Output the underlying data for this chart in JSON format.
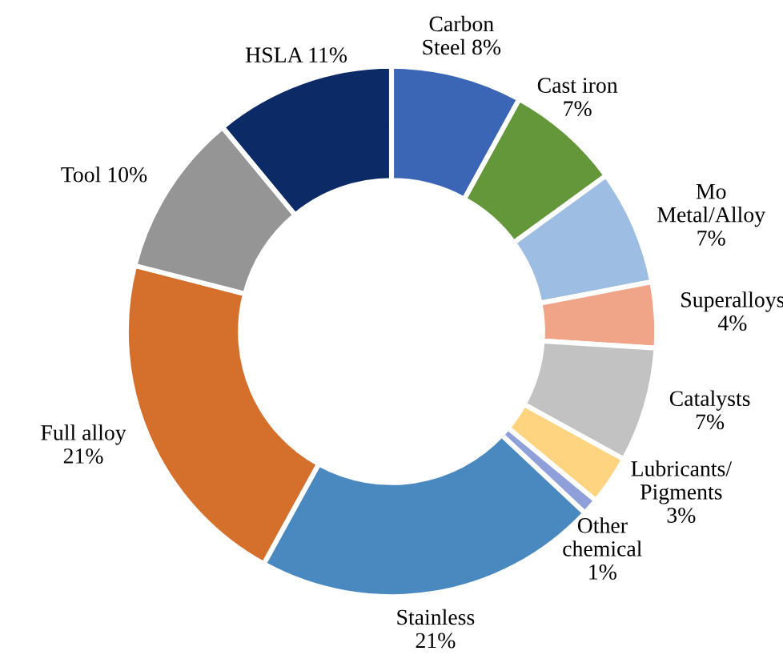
{
  "chart_data": {
    "type": "donut",
    "categories": [
      "Carbon\nSteel",
      "Cast iron",
      "Mo\nMetal/Alloy",
      "Superalloys",
      "Catalysts",
      "Lubricants/\nPigments",
      "Other\nchemical",
      "Stainless",
      "Full alloy",
      "Tool",
      "HSLA"
    ],
    "values": [
      8,
      7,
      7,
      4,
      7,
      3,
      1,
      21,
      21,
      10,
      11
    ],
    "colors": [
      "#3a66b5",
      "#64973a",
      "#9dbde3",
      "#f0a488",
      "#c2c2c2",
      "#ffd480",
      "#8e9fd9",
      "#4a89c0",
      "#d4702b",
      "#959595",
      "#0b2a66"
    ],
    "value_labels": [
      "8%",
      "7%",
      "7%",
      "4%",
      "7%",
      "3%",
      "1%",
      "21%",
      "21%",
      "10%",
      "11%"
    ],
    "legend": false
  }
}
